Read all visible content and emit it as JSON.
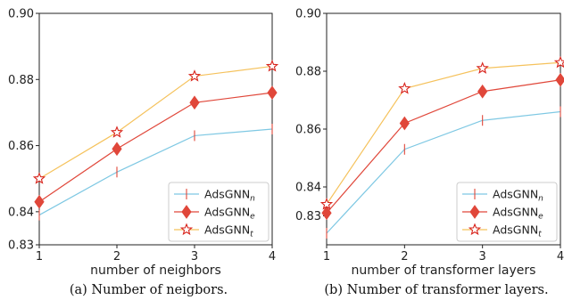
{
  "chart_data": [
    {
      "type": "line",
      "caption": "(a)  Number of neigbors.",
      "xlabel": "number of neighbors",
      "ylabel": "",
      "categories": [
        1,
        2,
        3,
        4
      ],
      "xlim": [
        1,
        4
      ],
      "ylim": [
        0.83,
        0.9
      ],
      "yticks": [
        0.83,
        0.84,
        0.86,
        0.88,
        0.9
      ],
      "ytick_labels": [
        "0.83",
        "0.84",
        "0.86",
        "0.88",
        "0.90"
      ],
      "grid": false,
      "legend_position": "bottom-right",
      "series": [
        {
          "name": "AdsGNN",
          "subscript": "n",
          "marker": "vline",
          "color": "#7ec8e3",
          "values": [
            0.839,
            0.852,
            0.863,
            0.865
          ]
        },
        {
          "name": "AdsGNN",
          "subscript": "e",
          "marker": "diamond",
          "color": "#e0473a",
          "values": [
            0.843,
            0.859,
            0.873,
            0.876
          ]
        },
        {
          "name": "AdsGNN",
          "subscript": "t",
          "marker": "star",
          "color": "#f5c25c",
          "values": [
            0.85,
            0.864,
            0.881,
            0.884
          ]
        }
      ]
    },
    {
      "type": "line",
      "caption": "(b)  Number of transformer layers.",
      "xlabel": "number of transformer layers",
      "ylabel": "",
      "categories": [
        1,
        2,
        3,
        4
      ],
      "xlim": [
        1,
        4
      ],
      "ylim": [
        0.82,
        0.9
      ],
      "yticks": [
        0.83,
        0.84,
        0.86,
        0.88,
        0.9
      ],
      "ytick_labels": [
        "0.83",
        "0.84",
        "0.86",
        "0.88",
        "0.90"
      ],
      "grid": false,
      "legend_position": "bottom-right",
      "series": [
        {
          "name": "AdsGNN",
          "subscript": "n",
          "marker": "vline",
          "color": "#7ec8e3",
          "values": [
            0.824,
            0.853,
            0.863,
            0.866
          ]
        },
        {
          "name": "AdsGNN",
          "subscript": "e",
          "marker": "diamond",
          "color": "#e0473a",
          "values": [
            0.831,
            0.862,
            0.873,
            0.877
          ]
        },
        {
          "name": "AdsGNN",
          "subscript": "t",
          "marker": "star",
          "color": "#f5c25c",
          "values": [
            0.834,
            0.874,
            0.881,
            0.883
          ]
        }
      ]
    }
  ]
}
